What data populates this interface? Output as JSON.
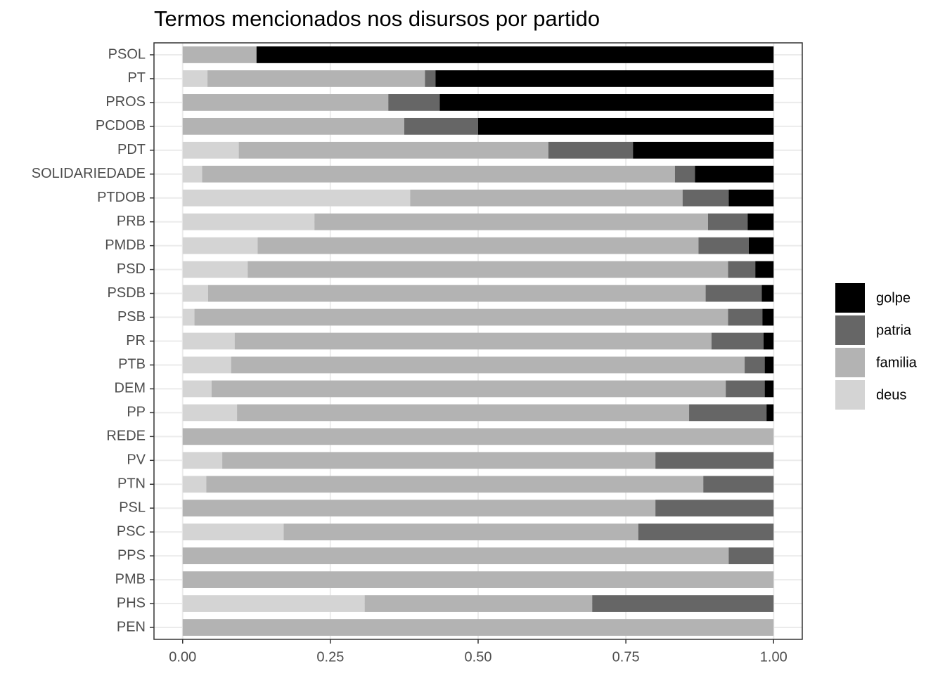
{
  "chart_data": {
    "type": "stacked_bar_horizontal",
    "title": "Termos mencionados nos disursos por partido",
    "categories": [
      "PSOL",
      "PT",
      "PROS",
      "PCDOB",
      "PDT",
      "SOLIDARIEDADE",
      "PTDOB",
      "PRB",
      "PMDB",
      "PSD",
      "PSDB",
      "PSB",
      "PR",
      "PTB",
      "DEM",
      "PP",
      "REDE",
      "PV",
      "PTN",
      "PSL",
      "PSC",
      "PPS",
      "PMB",
      "PHS",
      "PEN"
    ],
    "series": [
      {
        "name": "deus",
        "color": "#d4d4d4",
        "values": [
          0,
          0.042,
          0,
          0,
          0.095,
          0.033,
          0.385,
          0.223,
          0.127,
          0.11,
          0.043,
          0.02,
          0.088,
          0.082,
          0.049,
          0.092,
          0,
          0.067,
          0.04,
          0,
          0.171,
          0,
          0,
          0.308,
          0
        ]
      },
      {
        "name": "familia",
        "color": "#b3b3b3",
        "values": [
          0.125,
          0.368,
          0.348,
          0.375,
          0.524,
          0.8,
          0.461,
          0.666,
          0.746,
          0.813,
          0.842,
          0.903,
          0.807,
          0.869,
          0.87,
          0.765,
          1,
          0.733,
          0.841,
          0.8,
          0.6,
          0.924,
          1,
          0.385,
          1
        ]
      },
      {
        "name": "patria",
        "color": "#666666",
        "values": [
          0,
          0.018,
          0.087,
          0.125,
          0.143,
          0.034,
          0.078,
          0.067,
          0.085,
          0.046,
          0.095,
          0.058,
          0.088,
          0.034,
          0.066,
          0.131,
          0,
          0.2,
          0.119,
          0.2,
          0.229,
          0.076,
          0,
          0.307,
          0
        ]
      },
      {
        "name": "golpe",
        "color": "#000000",
        "values": [
          0.875,
          0.572,
          0.565,
          0.5,
          0.238,
          0.133,
          0.076,
          0.044,
          0.042,
          0.031,
          0.02,
          0.019,
          0.017,
          0.015,
          0.015,
          0.012,
          0,
          0,
          0,
          0,
          0,
          0,
          0,
          0,
          0
        ]
      }
    ],
    "xlim": [
      -0.0485,
      1.0485
    ],
    "xticks": [
      {
        "value": 0,
        "label": "0.00"
      },
      {
        "value": 0.25,
        "label": "0.25"
      },
      {
        "value": 0.5,
        "label": "0.50"
      },
      {
        "value": 0.75,
        "label": "0.75"
      },
      {
        "value": 1,
        "label": "1.00"
      }
    ],
    "grid": true,
    "legend": "right"
  }
}
